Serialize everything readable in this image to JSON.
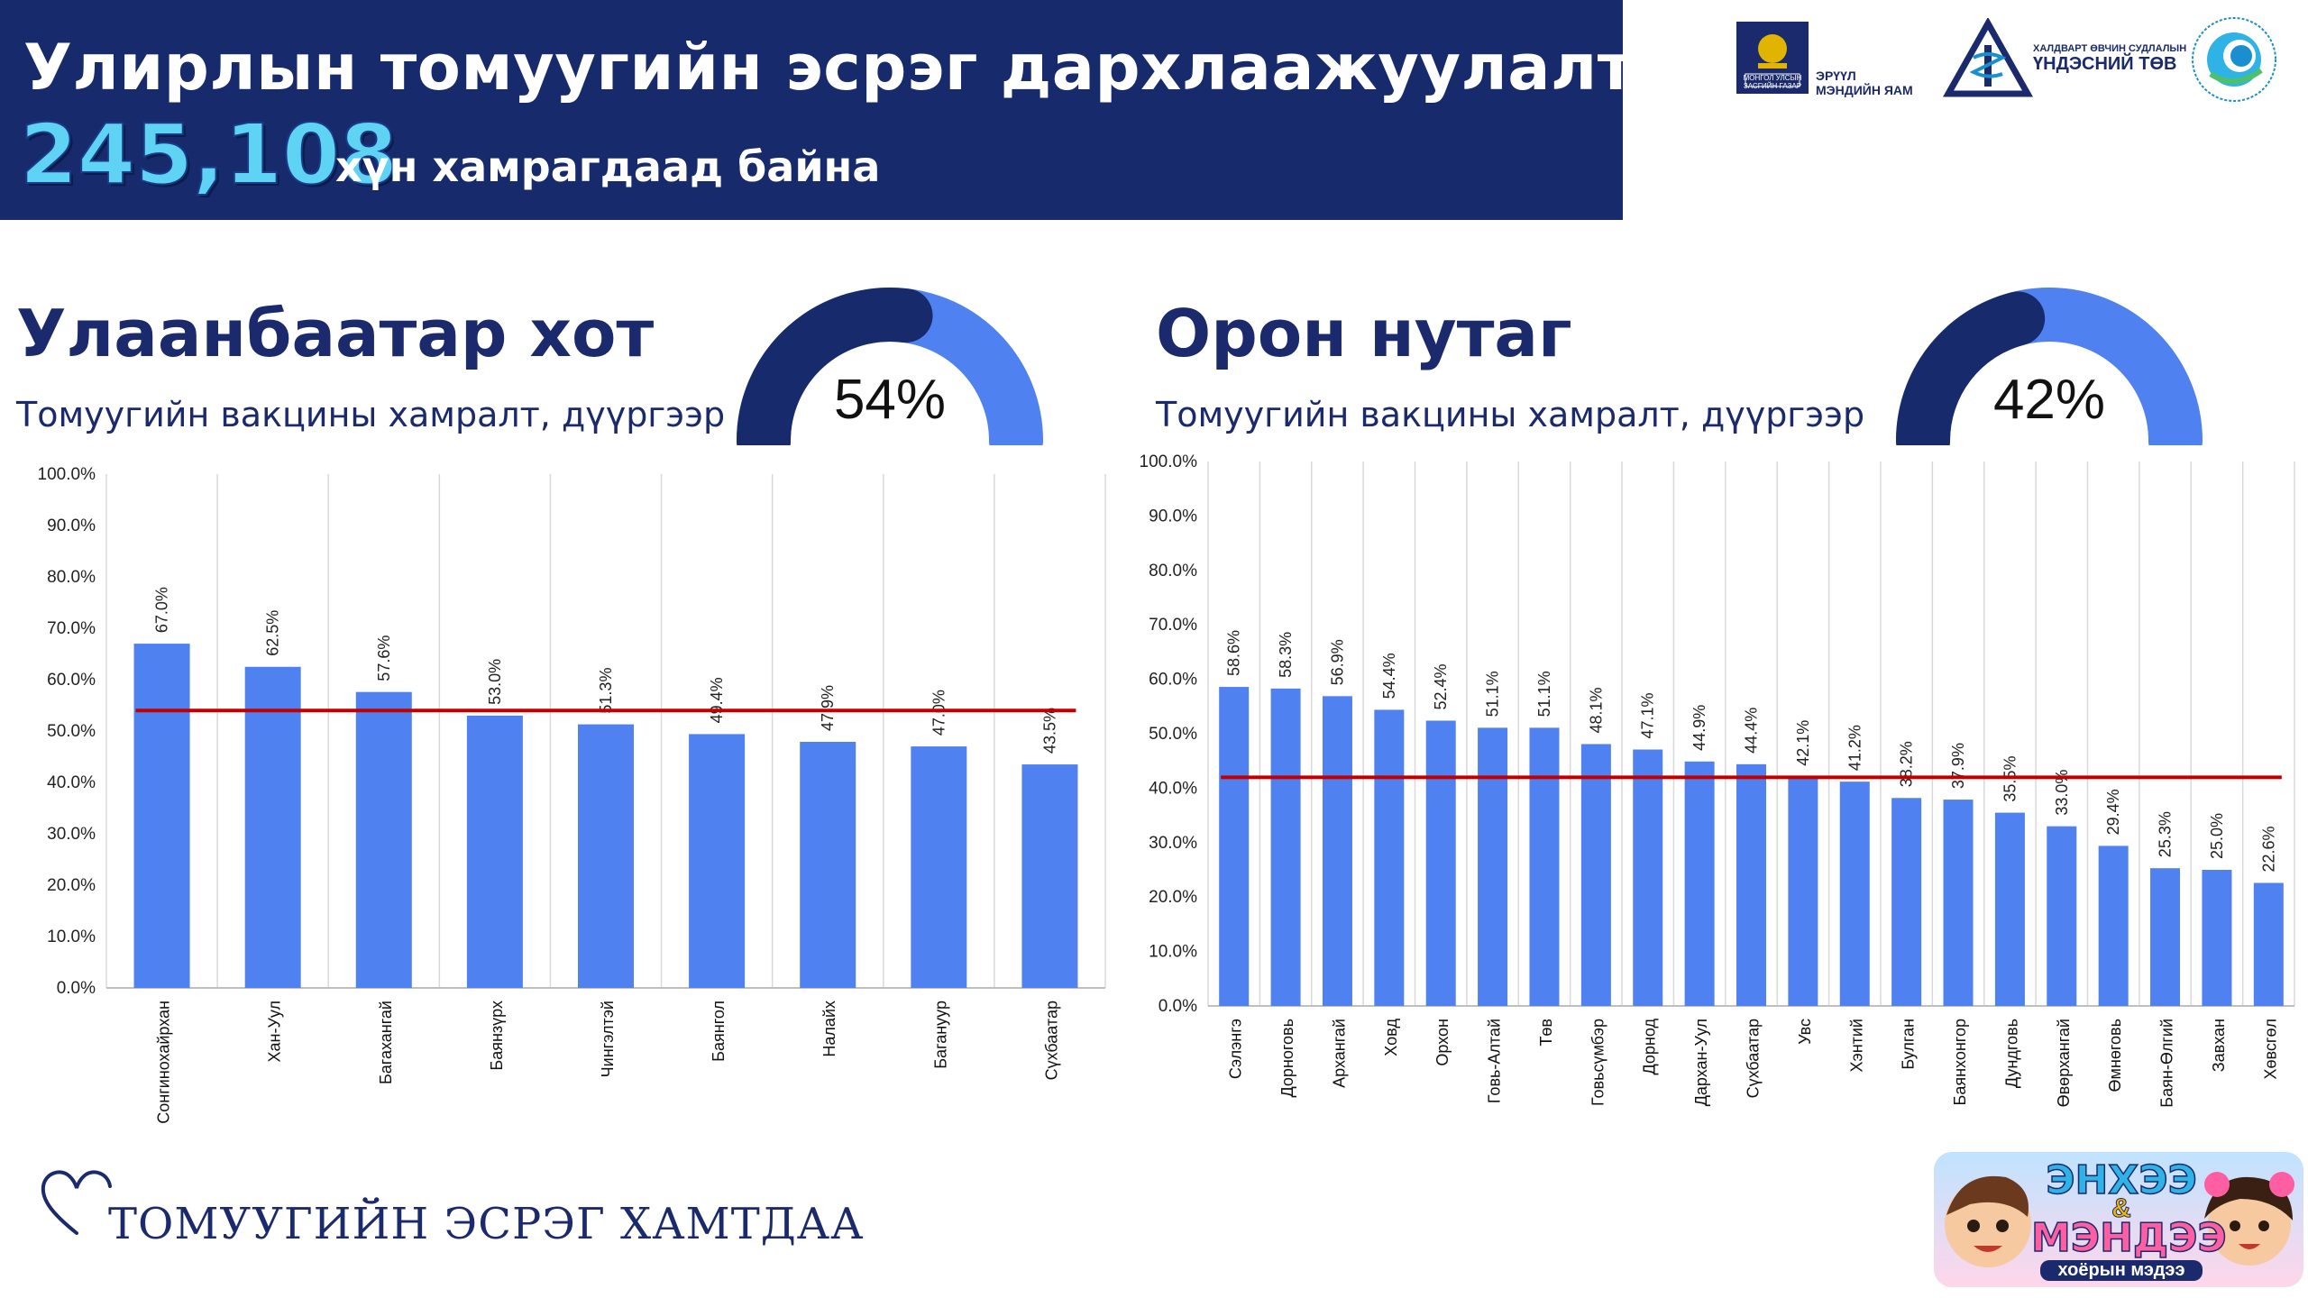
{
  "header": {
    "title": "Улирлын томуугийн эсрэг дархлаажуулалт",
    "count": "245,108",
    "count_suffix": "хүн хамрагдаад байна",
    "bg_color": "#172a6b"
  },
  "logos": [
    {
      "name": "ministry-logo",
      "text_lines": [
        "ЭРҮҮЛ",
        "МЭНДИЙН ЯАМ"
      ],
      "small_lines": [
        "МОНГОЛ УЛСЫН",
        "ЗАСГИЙН ГАЗАР"
      ]
    },
    {
      "name": "nccd-logo",
      "text_lines": [
        "ХАЛДВАРТ ӨВЧИН СУДЛАЛЫН",
        "ҮНДЭСНИЙ ТӨВ"
      ]
    },
    {
      "name": "public-health-logo",
      "text_lines": []
    }
  ],
  "city": {
    "title": "Улаанбаатар хот",
    "subtitle": "Томуугийн вакцины хамралт, дүүргээр",
    "gauge_value": "54%",
    "gauge_fraction": 0.54
  },
  "rural": {
    "title": "Орон нутаг",
    "subtitle": "Томуугийн вакцины хамралт, дүүргээр",
    "gauge_value": "42%",
    "gauge_fraction": 0.42
  },
  "chart_data": [
    {
      "type": "bar",
      "categories": [
        "Сонгинохайрхан",
        "Хан-Уул",
        "Багахангай",
        "Баянзүрх",
        "Чингэлтэй",
        "Баянгол",
        "Налайх",
        "Багануур",
        "Сүхбаатар"
      ],
      "values": [
        67.0,
        62.5,
        57.6,
        53.0,
        51.3,
        49.4,
        47.9,
        47.0,
        43.5
      ],
      "labels": [
        "67.0%",
        "62.5%",
        "57.6%",
        "53.0%",
        "51.3%",
        "49.4%",
        "47.9%",
        "47.0%",
        "43.5%"
      ],
      "average_line": 54,
      "ylim": [
        0,
        100
      ],
      "yticks": [
        "0.0%",
        "10.0%",
        "20.0%",
        "30.0%",
        "40.0%",
        "50.0%",
        "60.0%",
        "70.0%",
        "80.0%",
        "90.0%",
        "100.0%"
      ],
      "grid": true,
      "bar_color": "#4f81f0",
      "line_color": "#c00000"
    },
    {
      "type": "bar",
      "categories": [
        "Сэлэнгэ",
        "Дорноговь",
        "Архангай",
        "Ховд",
        "Орхон",
        "Говь-Алтай",
        "Төв",
        "Говьсүмбэр",
        "Дорнод",
        "Дархан-Уул",
        "Сүхбаатар",
        "Увс",
        "Хэнтий",
        "Булган",
        "Баянхонгор",
        "Дундговь",
        "Өвөрхангай",
        "Өмнөговь",
        "Баян-Өлгий",
        "Завхан",
        "Хөвсгөл"
      ],
      "values": [
        58.6,
        58.3,
        56.9,
        54.4,
        52.4,
        51.1,
        51.1,
        48.1,
        47.1,
        44.9,
        44.4,
        42.1,
        41.2,
        38.2,
        37.9,
        35.5,
        33.0,
        29.4,
        25.3,
        25.0,
        22.6
      ],
      "labels": [
        "58.6%",
        "58.3%",
        "56.9%",
        "54.4%",
        "52.4%",
        "51.1%",
        "51.1%",
        "48.1%",
        "47.1%",
        "44.9%",
        "44.4%",
        "42.1%",
        "41.2%",
        "38.2%",
        "37.9%",
        "35.5%",
        "33.0%",
        "29.4%",
        "25.3%",
        "25.0%",
        "22.6%"
      ],
      "average_line": 42,
      "ylim": [
        0,
        100
      ],
      "yticks": [
        "0.0%",
        "10.0%",
        "20.0%",
        "30.0%",
        "40.0%",
        "50.0%",
        "60.0%",
        "70.0%",
        "80.0%",
        "90.0%",
        "100.0%"
      ],
      "grid": true,
      "bar_color": "#4f81f0",
      "line_color": "#c00000"
    }
  ],
  "footer": {
    "slogan": "ТОМУУГИЙН ЭСРЭГ ХАМТДАА",
    "badge_line1": "ЭНХЭЭ",
    "badge_amp": "&",
    "badge_line2": "МЭНДЭЭ",
    "badge_line3": "хоёрын мэдээ"
  },
  "colors": {
    "navy": "#1a2a6c",
    "gauge_dark": "#172a6b",
    "gauge_light": "#4f81f0"
  }
}
